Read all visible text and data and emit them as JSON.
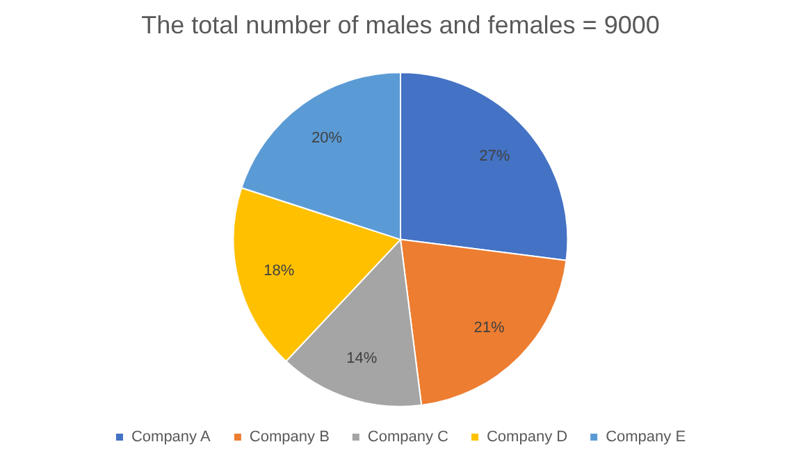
{
  "chart_data": {
    "type": "pie",
    "title": "The total number of males and females = 9000",
    "categories": [
      "Company A",
      "Company B",
      "Company C",
      "Company D",
      "Company E"
    ],
    "values": [
      27,
      21,
      14,
      18,
      20
    ],
    "value_labels": [
      "27%",
      "21%",
      "14%",
      "18%",
      "20%"
    ],
    "colors": [
      "#4472c4",
      "#ed7d31",
      "#a5a5a5",
      "#ffc000",
      "#5b9bd5"
    ],
    "legend": "bottom"
  }
}
